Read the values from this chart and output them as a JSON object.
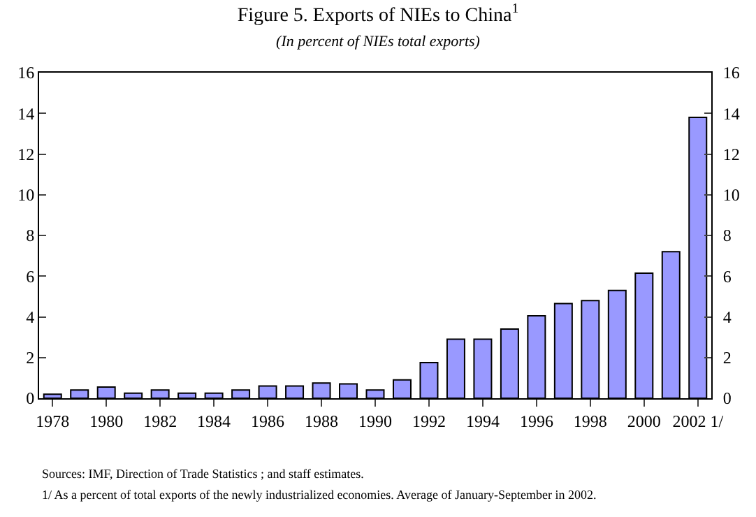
{
  "chart_data": {
    "type": "bar",
    "title": "Figure 5. Exports of NIEs to China$^{1}$",
    "subtitle": "(In percent of NIEs total exports)",
    "categories": [
      "1978",
      null,
      "1980",
      null,
      "1982",
      null,
      "1984",
      null,
      "1986",
      null,
      "1988",
      null,
      "1990",
      null,
      "1992",
      null,
      "1994",
      null,
      "1996",
      null,
      "1998",
      null,
      "2000",
      null,
      "2002 1/"
    ],
    "values": [
      0.2,
      0.4,
      0.55,
      0.25,
      0.4,
      0.25,
      0.25,
      0.4,
      0.6,
      0.6,
      0.75,
      0.7,
      0.4,
      0.9,
      1.75,
      2.9,
      2.9,
      3.4,
      4.05,
      4.65,
      4.8,
      5.3,
      6.15,
      7.2,
      13.8
    ],
    "color": "#9999ff",
    "ylim": [
      0,
      16
    ],
    "yticks": [
      0,
      2,
      4,
      6,
      8,
      10,
      12,
      14,
      16
    ],
    "y2lim": [
      0,
      16
    ],
    "y2ticks": [
      0,
      2,
      4,
      6,
      8,
      10,
      12,
      14,
      16
    ],
    "annotations": [
      "Sources: IMF, Direction of Trade Statistics ; and staff estimates.",
      "1/ As a percent of total exports of the newly industrialized economies. Average of January-September in 2002."
    ]
  }
}
